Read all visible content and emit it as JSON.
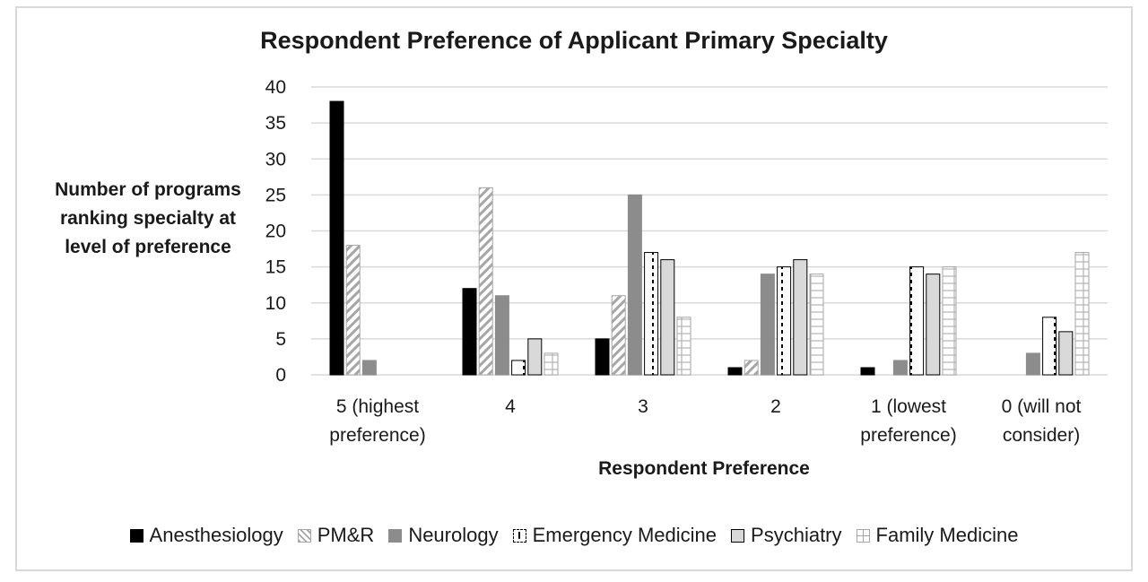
{
  "chart_data": {
    "type": "bar",
    "title": "Respondent Preference of Applicant Primary Specialty",
    "xlabel": "Respondent Preference",
    "ylabel": "Number of programs ranking specialty at level of preference",
    "ylim": [
      0,
      40
    ],
    "yticks": [
      "0",
      "5",
      "10",
      "15",
      "20",
      "25",
      "30",
      "35",
      "40"
    ],
    "grid": true,
    "legend_position": "bottom",
    "categories": [
      [
        "5 (highest",
        "preference)"
      ],
      [
        "4"
      ],
      [
        "3"
      ],
      [
        "2"
      ],
      [
        "1 (lowest",
        "preference)"
      ],
      [
        "0 (will not",
        "consider)"
      ]
    ],
    "series": [
      {
        "name": "Anesthesiology",
        "values": [
          38,
          12,
          5,
          1,
          1,
          0
        ],
        "style": "solid-black",
        "color": "#000000"
      },
      {
        "name": "PM&R",
        "values": [
          18,
          26,
          11,
          2,
          0,
          0
        ],
        "style": "diagonal-hatch",
        "color": "#a6a6a6"
      },
      {
        "name": "Neurology",
        "values": [
          2,
          11,
          25,
          14,
          2,
          3
        ],
        "style": "solid-gray",
        "color": "#8c8c8c"
      },
      {
        "name": "Emergency Medicine",
        "values": [
          0,
          2,
          17,
          15,
          15,
          8
        ],
        "style": "dashed-center",
        "color": "#000000"
      },
      {
        "name": "Psychiatry",
        "values": [
          0,
          5,
          16,
          16,
          14,
          6
        ],
        "style": "light-gray",
        "color": "#d9d9d9"
      },
      {
        "name": "Family Medicine",
        "values": [
          0,
          3,
          8,
          14,
          15,
          17
        ],
        "style": "brick",
        "color": "#a6a6a6"
      }
    ]
  }
}
